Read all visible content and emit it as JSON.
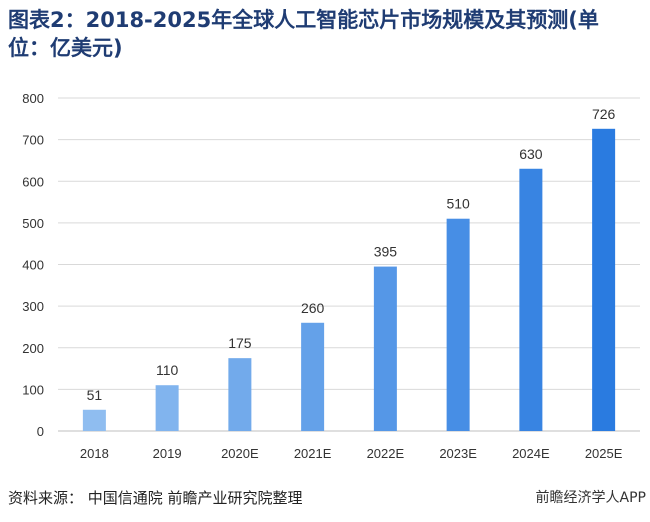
{
  "title": "图表2：2018-2025年全球人工智能芯片市场规模及其预测(单位：亿美元)",
  "source": "资料来源：  中国信通院  前瞻产业研究院整理",
  "brand": "前瞻经济学人APP",
  "chart_data": {
    "type": "bar",
    "categories": [
      "2018",
      "2019",
      "2020E",
      "2021E",
      "2022E",
      "2023E",
      "2024E",
      "2025E"
    ],
    "values": [
      51,
      110,
      175,
      260,
      395,
      510,
      630,
      726
    ],
    "value_labels": [
      "51",
      "110",
      "175",
      "260",
      "395",
      "510",
      "630",
      "726"
    ],
    "ylim": [
      0,
      800
    ],
    "yticks": [
      "0",
      "100",
      "200",
      "300",
      "400",
      "500",
      "600",
      "700",
      "800"
    ],
    "grid": true,
    "legend": "none",
    "colors": {
      "start": "#8fbdf0",
      "end": "#2a7be0",
      "grid": "#d9d9d9",
      "axis": "#bfbfbf"
    }
  }
}
